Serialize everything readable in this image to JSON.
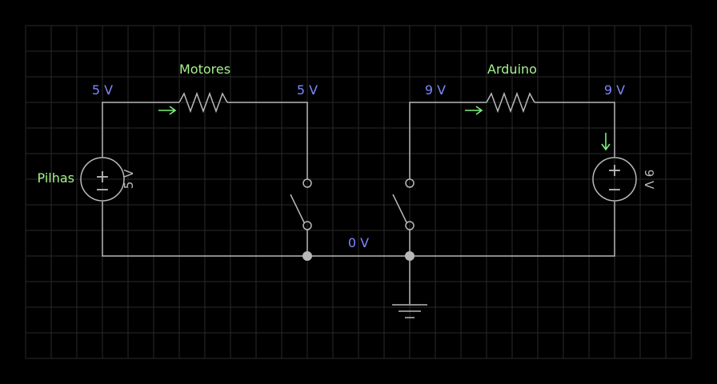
{
  "components": {
    "resistor_left_label": "Motores",
    "resistor_right_label": "Arduino",
    "source_left_label": "Pilhas",
    "source_left_value": "5 V",
    "source_right_value": "9 V"
  },
  "voltages": {
    "left_top_left": "5 V",
    "left_top_right": "5 V",
    "right_top_left": "9 V",
    "right_top_right": "9 V",
    "ground_bus": "0 V"
  },
  "source_symbols": {
    "plus": "+",
    "minus": "−"
  },
  "colors": {
    "background": "#000000",
    "grid": "#2a2a2a",
    "wire": "#b8b8b8",
    "voltage_text": "#7f86ff",
    "label_text": "#a6f08e",
    "current_arrow": "#7cf07c"
  }
}
